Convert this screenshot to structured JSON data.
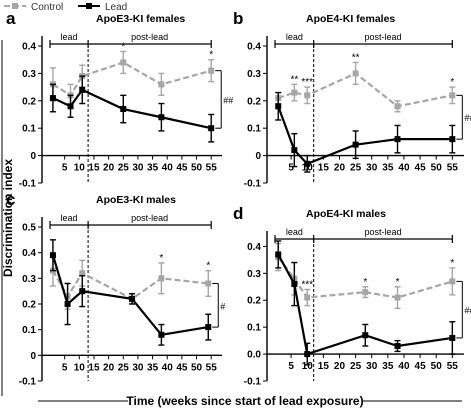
{
  "legend": {
    "items": [
      {
        "label": "Control",
        "color": "#a6a6a6"
      },
      {
        "label": "Lead",
        "color": "#000000"
      }
    ]
  },
  "y_axis_label": "Discrimination index",
  "x_axis_label": "Time (weeks since start of lead exposure)",
  "chart_data": [
    {
      "type": "line",
      "panel": "a",
      "title": "ApoE3-KI females",
      "x_ticks": [
        5,
        10,
        15,
        20,
        25,
        30,
        35,
        40,
        45,
        50,
        55
      ],
      "y_ticks": [
        -0.1,
        0,
        0.1,
        0.2,
        0.3,
        0.4
      ],
      "y_tick_labels": [
        "-0.1",
        "0",
        "0.1",
        "0.2",
        "0.3",
        "0.4"
      ],
      "xlim": [
        0,
        58
      ],
      "ylim": [
        -0.1,
        0.4
      ],
      "phases": [
        {
          "label": "lead",
          "from": 0,
          "to": 13
        },
        {
          "label": "post-lead",
          "from": 13,
          "to": 55
        }
      ],
      "divider_x": 13,
      "series": [
        {
          "name": "Control",
          "color": "#a6a6a6",
          "dashed": true,
          "x": [
            1,
            7,
            11,
            25,
            38,
            55
          ],
          "y": [
            0.26,
            0.22,
            0.29,
            0.34,
            0.26,
            0.31
          ],
          "err": [
            0.06,
            0.04,
            0.04,
            0.04,
            0.04,
            0.04
          ]
        },
        {
          "name": "Lead",
          "color": "#000000",
          "dashed": false,
          "x": [
            1,
            7,
            11,
            25,
            38,
            55
          ],
          "y": [
            0.21,
            0.18,
            0.24,
            0.17,
            0.14,
            0.1
          ],
          "err": [
            0.05,
            0.04,
            0.05,
            0.05,
            0.05,
            0.05
          ]
        }
      ],
      "stars": [
        {
          "x": 25,
          "label": "*"
        },
        {
          "x": 55,
          "label": "*"
        }
      ],
      "significance": "##"
    },
    {
      "type": "line",
      "panel": "b",
      "title": "ApoE4-KI females",
      "x_ticks": [
        5,
        10,
        15,
        20,
        25,
        30,
        35,
        40,
        45,
        50,
        55
      ],
      "y_ticks": [
        -0.1,
        0,
        0.1,
        0.2,
        0.3,
        0.4
      ],
      "y_tick_labels": [
        "-0.1",
        "0",
        "0.1",
        "0.2",
        "0.3",
        "0.4"
      ],
      "xlim": [
        0,
        58
      ],
      "ylim": [
        -0.1,
        0.4
      ],
      "phases": [
        {
          "label": "lead",
          "from": 0,
          "to": 12
        },
        {
          "label": "post-lead",
          "from": 12,
          "to": 55
        }
      ],
      "divider_x": 12,
      "series": [
        {
          "name": "Control",
          "color": "#a6a6a6",
          "dashed": true,
          "x": [
            1,
            6,
            10,
            25,
            38,
            55
          ],
          "y": [
            0.21,
            0.23,
            0.22,
            0.3,
            0.18,
            0.22
          ],
          "err": [
            0.02,
            0.03,
            0.03,
            0.04,
            0.02,
            0.03
          ]
        },
        {
          "name": "Lead",
          "color": "#000000",
          "dashed": false,
          "x": [
            1,
            6,
            10,
            25,
            38,
            55
          ],
          "y": [
            0.18,
            0.02,
            -0.03,
            0.04,
            0.06,
            0.06
          ],
          "err": [
            0.05,
            0.06,
            0.03,
            0.05,
            0.05,
            0.05
          ]
        }
      ],
      "stars": [
        {
          "x": 6,
          "label": "**"
        },
        {
          "x": 10,
          "label": "***"
        },
        {
          "x": 25,
          "label": "**"
        },
        {
          "x": 55,
          "label": "*"
        }
      ],
      "significance": "###"
    },
    {
      "type": "line",
      "panel": "c",
      "title": "ApoE3-KI males",
      "x_ticks": [
        5,
        10,
        15,
        20,
        25,
        30,
        35,
        40,
        45,
        50,
        55
      ],
      "y_ticks": [
        -0.1,
        0,
        0.1,
        0.2,
        0.3,
        0.4,
        0.5
      ],
      "y_tick_labels": [
        "-0.1",
        "0",
        "0.1",
        "0.2",
        "0.3",
        "0.4",
        "0.5"
      ],
      "xlim": [
        0,
        58
      ],
      "ylim": [
        -0.1,
        0.5
      ],
      "phases": [
        {
          "label": "lead",
          "from": 0,
          "to": 13
        },
        {
          "label": "post-lead",
          "from": 13,
          "to": 55
        }
      ],
      "divider_x": 13,
      "series": [
        {
          "name": "Control",
          "color": "#a6a6a6",
          "dashed": true,
          "x": [
            1,
            6,
            11,
            28,
            38,
            54
          ],
          "y": [
            0.33,
            0.23,
            0.32,
            0.22,
            0.3,
            0.28
          ],
          "err": [
            0.06,
            0.05,
            0.05,
            0.02,
            0.06,
            0.05
          ]
        },
        {
          "name": "Lead",
          "color": "#000000",
          "dashed": false,
          "x": [
            1,
            6,
            11,
            28,
            38,
            54
          ],
          "y": [
            0.39,
            0.2,
            0.25,
            0.22,
            0.08,
            0.11
          ],
          "err": [
            0.06,
            0.08,
            0.06,
            0.02,
            0.04,
            0.05
          ]
        }
      ],
      "stars": [
        {
          "x": 38,
          "label": "*"
        },
        {
          "x": 54,
          "label": "*"
        }
      ],
      "significance": "#"
    },
    {
      "type": "line",
      "panel": "d",
      "title": "ApoE4-KI males",
      "x_ticks": [
        5,
        10,
        15,
        20,
        25,
        30,
        35,
        40,
        45,
        50,
        55
      ],
      "y_ticks": [
        -0.1,
        0,
        0.1,
        0.2,
        0.3,
        0.4
      ],
      "y_tick_labels": [
        "-0.1",
        "0.0",
        "0.1",
        "0.2",
        "0.3",
        "0.4"
      ],
      "xlim": [
        0,
        58
      ],
      "ylim": [
        -0.1,
        0.42
      ],
      "phases": [
        {
          "label": "lead",
          "from": 0,
          "to": 12
        },
        {
          "label": "post-lead",
          "from": 12,
          "to": 55
        }
      ],
      "divider_x": 12,
      "series": [
        {
          "name": "Control",
          "color": "#a6a6a6",
          "dashed": true,
          "x": [
            1,
            6,
            10,
            28,
            38,
            55
          ],
          "y": [
            0.36,
            0.28,
            0.21,
            0.23,
            0.21,
            0.27
          ],
          "err": [
            0.05,
            0.06,
            0.03,
            0.02,
            0.04,
            0.05
          ]
        },
        {
          "name": "Lead",
          "color": "#000000",
          "dashed": false,
          "x": [
            1,
            6,
            10,
            28,
            38,
            55
          ],
          "y": [
            0.37,
            0.26,
            0.0,
            0.07,
            0.03,
            0.06
          ],
          "err": [
            0.05,
            0.08,
            0.04,
            0.04,
            0.02,
            0.06
          ]
        }
      ],
      "stars": [
        {
          "x": 10,
          "label": "***"
        },
        {
          "x": 28,
          "label": "*"
        },
        {
          "x": 38,
          "label": "*"
        },
        {
          "x": 55,
          "label": "*"
        }
      ],
      "significance": "###"
    }
  ]
}
